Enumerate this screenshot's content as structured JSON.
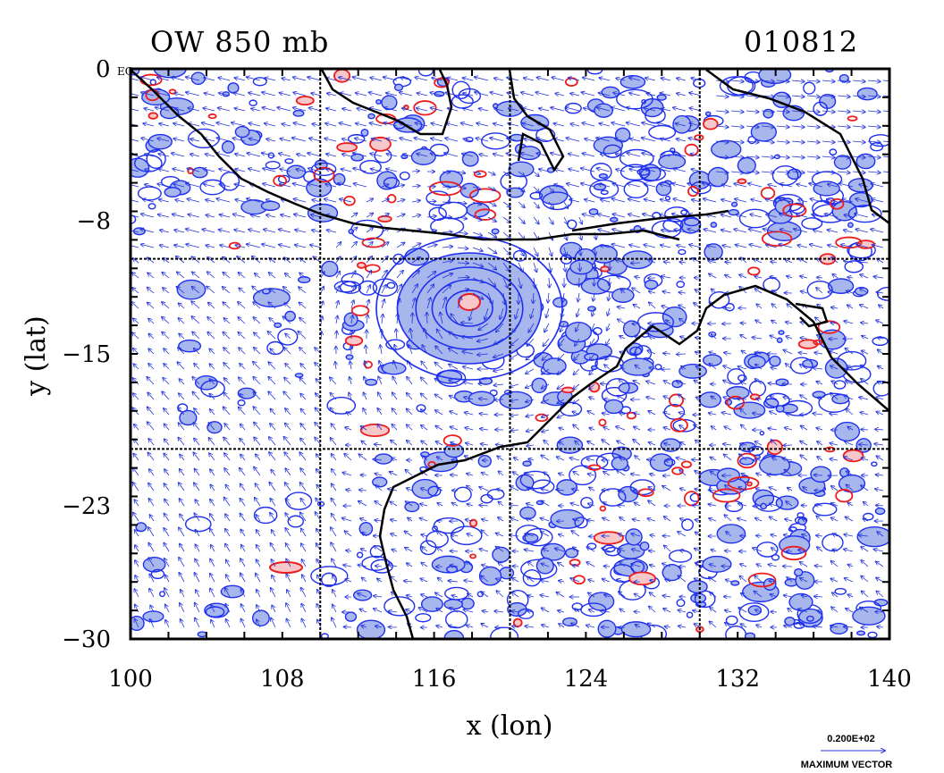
{
  "colors": {
    "positive_fill": "#a8b6ee",
    "positive_line": "#1f2ff0",
    "negative_fill": "#f7c7c9",
    "negative_line": "#ee1c1c",
    "coast": "#000000",
    "vector": "#2233dd"
  },
  "chart_data": {
    "type": "heatmap",
    "title": "OW 850 mb",
    "date_label": "010812",
    "xlabel": "x (lon)",
    "ylabel": "y (lat)",
    "xlim": [
      100,
      140
    ],
    "ylim": [
      -30,
      0
    ],
    "x_ticks": [
      "100",
      "108",
      "116",
      "124",
      "132",
      "140"
    ],
    "y_ticks": [
      "-8",
      "-15",
      "-23",
      "-30"
    ],
    "y_top_label": "0",
    "y_top_suffix": "EQ",
    "grid_lines_x": [
      110,
      120,
      130
    ],
    "grid_lines_y": [
      -10,
      -20
    ],
    "vector_reference": {
      "value": "0.200E+02",
      "label": "MAXIMUM VECTOR"
    }
  }
}
